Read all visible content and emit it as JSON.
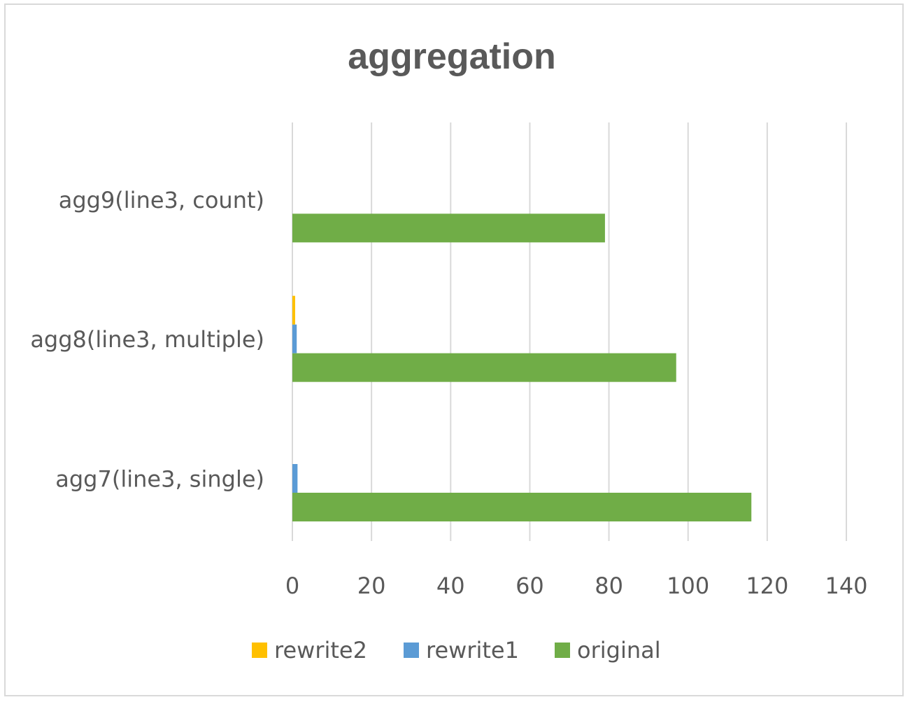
{
  "chart_data": {
    "type": "bar",
    "orientation": "horizontal",
    "title": "aggregation",
    "categories": [
      "agg7(line3, single)",
      "agg8(line3, multiple)",
      "agg9(line3, count)"
    ],
    "series": [
      {
        "name": "original",
        "color": "#70ad47",
        "values": [
          116,
          97,
          79
        ]
      },
      {
        "name": "rewrite1",
        "color": "#5b9bd5",
        "values": [
          1.3,
          1.1,
          0
        ]
      },
      {
        "name": "rewrite2",
        "color": "#ffc000",
        "values": [
          0,
          0.7,
          0
        ]
      }
    ],
    "legend_order": [
      "rewrite2",
      "rewrite1",
      "original"
    ],
    "xlim": [
      0,
      140
    ],
    "xticks": [
      0,
      20,
      40,
      60,
      80,
      100,
      120,
      140
    ],
    "grid": true,
    "legend_position": "bottom"
  }
}
